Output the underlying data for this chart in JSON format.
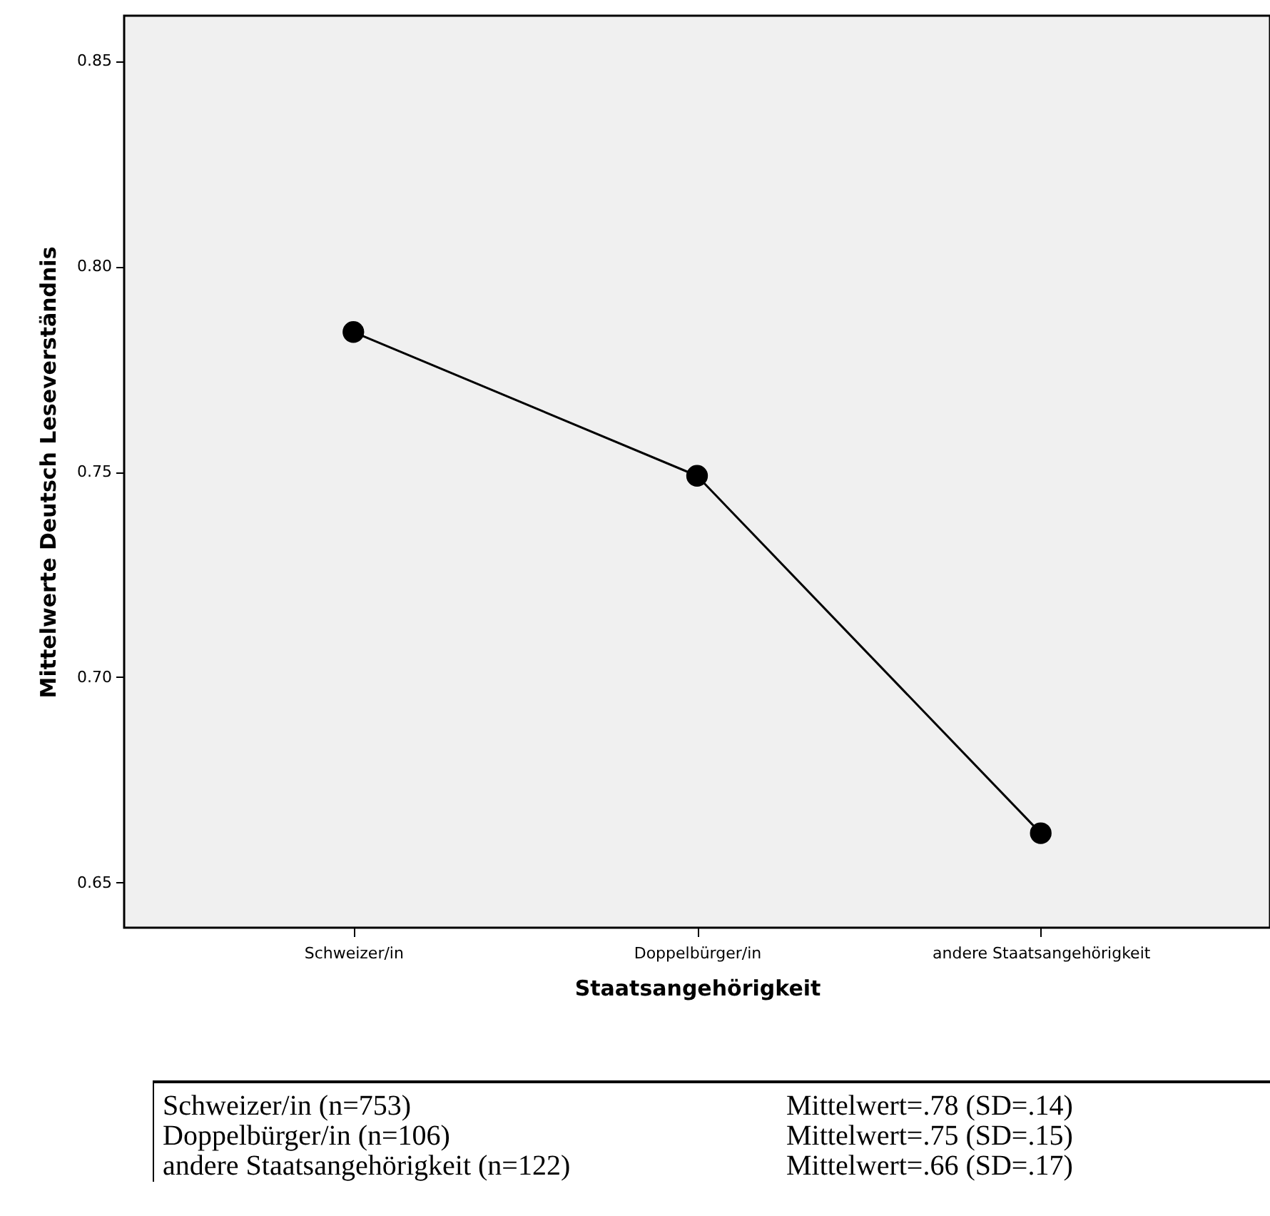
{
  "chart_data": {
    "type": "line",
    "categories": [
      "Schweizer/in",
      "Doppelbürger/in",
      "andere Staatsangehörigkeit"
    ],
    "values": [
      0.784,
      0.749,
      0.662
    ],
    "color": "#000000",
    "xlabel": "Staatsangehörigkeit",
    "ylabel": "Mittelwerte Deutsch Leseverständnis",
    "ylim": [
      0.639,
      0.861
    ],
    "yticks": [
      {
        "value": 0.65,
        "label": "0.65"
      },
      {
        "value": 0.7,
        "label": "0.70"
      },
      {
        "value": 0.75,
        "label": "0.75"
      },
      {
        "value": 0.8,
        "label": "0.80"
      },
      {
        "value": 0.85,
        "label": "0.85"
      }
    ],
    "marker": "circle",
    "line_style": "solid",
    "grid": false,
    "annotations": [
      "Schweizer/in (n=753)",
      "Mittelwert=.78 (SD=.14)",
      "Doppelbürger/in (n=106)",
      "Mittelwert=.75 (SD=.15)",
      "andere Staatsangehörigkeit (n=122)",
      "Mittelwert=.66 (SD=.17)"
    ]
  }
}
